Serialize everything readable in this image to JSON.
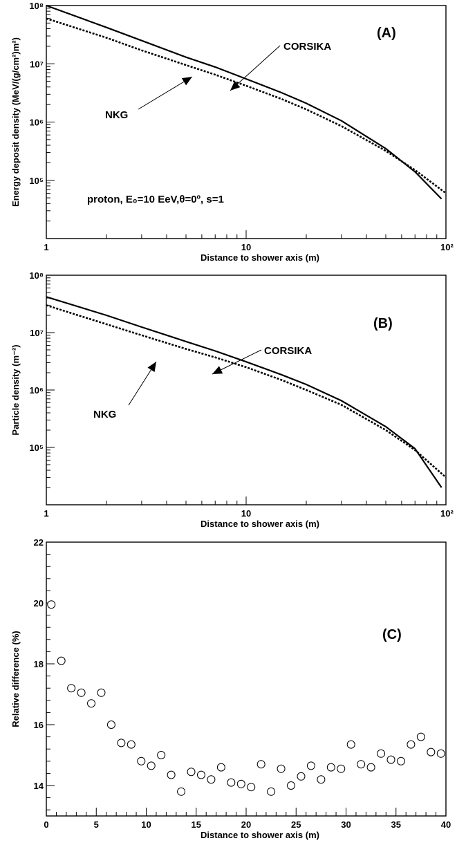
{
  "chart_data": [
    {
      "panel": "(A)",
      "type": "line",
      "xlabel": "Distance to shower axis (m)",
      "ylabel": "Energy deposit density (MeV/(g/cm²)m²)",
      "xscale": "log",
      "yscale": "log",
      "xlim": [
        1,
        100
      ],
      "ylim": [
        10000,
        100000000
      ],
      "x_tick_labels": [
        "1",
        "10",
        "10²"
      ],
      "y_tick_labels": [
        "10⁵",
        "10⁶",
        "10⁷",
        "10⁸"
      ],
      "annotations": [
        "CORSIKA",
        "NKG",
        "proton, E₀=10 EeV,θ=0º, s=1"
      ],
      "series": [
        {
          "name": "CORSIKA",
          "style": "solid",
          "x": [
            1,
            2,
            3,
            5,
            7,
            10,
            15,
            20,
            30,
            50,
            70,
            95
          ],
          "y": [
            100000000,
            42000000,
            25000000,
            13000000,
            8800000,
            5500000,
            3200000,
            2100000,
            1050000,
            350000,
            140000,
            48000
          ]
        },
        {
          "name": "NKG",
          "style": "dotted",
          "x": [
            1,
            2,
            3,
            5,
            7,
            10,
            15,
            20,
            30,
            50,
            70,
            100
          ],
          "y": [
            60000000,
            28000000,
            17000000,
            9500000,
            6500000,
            4200000,
            2500000,
            1650000,
            850000,
            320000,
            150000,
            60000
          ]
        }
      ]
    },
    {
      "panel": "(B)",
      "type": "line",
      "xlabel": "Distance to shower axis (m)",
      "ylabel": "Particle density (m⁻²)",
      "xscale": "log",
      "yscale": "log",
      "xlim": [
        1,
        100
      ],
      "ylim": [
        10000,
        100000000
      ],
      "x_tick_labels": [
        "1",
        "10",
        "10²"
      ],
      "y_tick_labels": [
        "10⁵",
        "10⁶",
        "10⁷",
        "10⁸"
      ],
      "annotations": [
        "CORSIKA",
        "NKG"
      ],
      "series": [
        {
          "name": "CORSIKA",
          "style": "solid",
          "x": [
            1,
            2,
            3,
            5,
            7,
            10,
            15,
            20,
            30,
            50,
            70,
            95
          ],
          "y": [
            42000000,
            20000000,
            12500000,
            7000000,
            4800000,
            3100000,
            1850000,
            1250000,
            650000,
            230000,
            95000,
            20000
          ]
        },
        {
          "name": "NKG",
          "style": "dotted",
          "x": [
            1,
            2,
            3,
            5,
            7,
            10,
            15,
            20,
            30,
            50,
            70,
            100
          ],
          "y": [
            30000000,
            14000000,
            9000000,
            5200000,
            3700000,
            2500000,
            1500000,
            1000000,
            550000,
            200000,
            90000,
            30000
          ]
        }
      ]
    },
    {
      "panel": "(C)",
      "type": "scatter",
      "xlabel": "Distance to shower axis (m)",
      "ylabel": "Relative difference (%)",
      "xlim": [
        0,
        40
      ],
      "ylim": [
        13,
        22
      ],
      "x_ticks": [
        0,
        5,
        10,
        15,
        20,
        25,
        30,
        35,
        40
      ],
      "y_ticks": [
        14,
        16,
        18,
        20,
        22
      ],
      "x": [
        0.5,
        1.5,
        2.5,
        3.5,
        4.5,
        5.5,
        6.5,
        7.5,
        8.5,
        9.5,
        10.5,
        11.5,
        12.5,
        13.5,
        14.5,
        15.5,
        16.5,
        17.5,
        18.5,
        19.5,
        20.5,
        21.5,
        22.5,
        23.5,
        24.5,
        25.5,
        26.5,
        27.5,
        28.5,
        29.5,
        30.5,
        31.5,
        32.5,
        33.5,
        34.5,
        35.5,
        36.5,
        37.5,
        38.5,
        39.5
      ],
      "y": [
        19.95,
        18.1,
        17.2,
        17.05,
        16.7,
        17.05,
        16.0,
        15.4,
        15.35,
        14.8,
        14.65,
        15.0,
        14.35,
        13.8,
        14.45,
        14.35,
        14.2,
        14.6,
        14.1,
        14.05,
        13.95,
        14.7,
        13.8,
        14.55,
        14.0,
        14.3,
        14.65,
        14.2,
        14.6,
        14.55,
        15.35,
        14.7,
        14.6,
        15.05,
        14.85,
        14.8,
        15.35,
        15.6,
        15.1,
        15.05
      ]
    }
  ]
}
